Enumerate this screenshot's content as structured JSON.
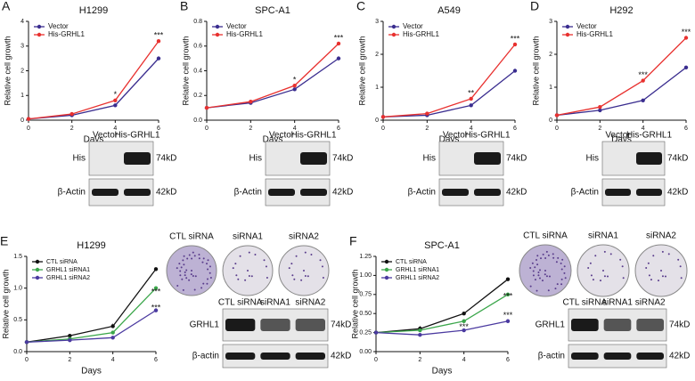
{
  "chart_data": [
    {
      "type": "line",
      "panel": "A",
      "title": "H1299",
      "xlabel": "Days",
      "ylabel": "Relative cell growth",
      "x": [
        0,
        2,
        4,
        6
      ],
      "xlim": [
        0,
        6
      ],
      "xticks": [
        0,
        2,
        4,
        6
      ],
      "ylim": [
        0,
        4
      ],
      "yticks": [
        0,
        1,
        2,
        3,
        4
      ],
      "series": [
        {
          "name": "Vector",
          "color": "#3a2d8f",
          "values": [
            0.05,
            0.2,
            0.6,
            2.5
          ]
        },
        {
          "name": "His-GRHL1",
          "color": "#e8312f",
          "values": [
            0.05,
            0.25,
            0.8,
            3.2
          ]
        }
      ],
      "annotations": [
        {
          "text": "*",
          "x": 4,
          "y": 0.8
        },
        {
          "text": "***",
          "x": 6,
          "y": 3.2
        }
      ],
      "blot": {
        "lanes": [
          "Vector",
          "His-GRHL1"
        ],
        "rows": [
          {
            "label": "His",
            "size": "74kD"
          },
          {
            "label": "β-Actin",
            "size": "42kD"
          }
        ]
      }
    },
    {
      "type": "line",
      "panel": "B",
      "title": "SPC-A1",
      "xlabel": "Days",
      "ylabel": "Relative cell growth",
      "x": [
        0,
        2,
        4,
        6
      ],
      "xlim": [
        0,
        6
      ],
      "xticks": [
        0,
        2,
        4,
        6
      ],
      "ylim": [
        0,
        0.8
      ],
      "yticks": [
        {
          "value": 0,
          "label": "0.0"
        },
        0.2,
        0.4,
        0.6,
        0.8
      ],
      "series": [
        {
          "name": "Vector",
          "color": "#3a2d8f",
          "values": [
            0.1,
            0.14,
            0.25,
            0.5
          ]
        },
        {
          "name": "His-GRHL1",
          "color": "#e8312f",
          "values": [
            0.1,
            0.15,
            0.28,
            0.62
          ]
        }
      ],
      "annotations": [
        {
          "text": "*",
          "x": 4,
          "y": 0.28
        },
        {
          "text": "***",
          "x": 6,
          "y": 0.62
        }
      ],
      "blot": {
        "lanes": [
          "Vector",
          "His-GRHL1"
        ],
        "rows": [
          {
            "label": "His",
            "size": "74kD"
          },
          {
            "label": "β-Actin",
            "size": "42kD"
          }
        ]
      }
    },
    {
      "type": "line",
      "panel": "C",
      "title": "A549",
      "xlabel": "Days",
      "ylabel": "Relative cell growth",
      "x": [
        0,
        2,
        4,
        6
      ],
      "xlim": [
        0,
        6
      ],
      "xticks": [
        0,
        2,
        4,
        6
      ],
      "ylim": [
        0,
        3
      ],
      "yticks": [
        0,
        1,
        2,
        3
      ],
      "series": [
        {
          "name": "Vector",
          "color": "#3a2d8f",
          "values": [
            0.1,
            0.15,
            0.45,
            1.5
          ]
        },
        {
          "name": "His-GRHL1",
          "color": "#e8312f",
          "values": [
            0.1,
            0.2,
            0.65,
            2.3
          ]
        }
      ],
      "annotations": [
        {
          "text": "**",
          "x": 4,
          "y": 0.65
        },
        {
          "text": "***",
          "x": 6,
          "y": 2.3
        }
      ],
      "blot": {
        "lanes": [
          "Vector",
          "His-GRHL1"
        ],
        "rows": [
          {
            "label": "His",
            "size": "74kD"
          },
          {
            "label": "β-Actin",
            "size": "42kD"
          }
        ]
      }
    },
    {
      "type": "line",
      "panel": "D",
      "title": "H292",
      "xlabel": "Days",
      "ylabel": "Relative cell growth",
      "x": [
        0,
        2,
        4,
        6
      ],
      "xlim": [
        0,
        6
      ],
      "xticks": [
        0,
        2,
        4,
        6
      ],
      "ylim": [
        0,
        3
      ],
      "yticks": [
        0,
        1,
        2,
        3
      ],
      "series": [
        {
          "name": "Vector",
          "color": "#3a2d8f",
          "values": [
            0.15,
            0.3,
            0.6,
            1.6
          ]
        },
        {
          "name": "His-GRHL1",
          "color": "#e8312f",
          "values": [
            0.15,
            0.4,
            1.2,
            2.5
          ]
        }
      ],
      "annotations": [
        {
          "text": "***",
          "x": 4,
          "y": 1.2
        },
        {
          "text": "***",
          "x": 6,
          "y": 2.5
        }
      ],
      "blot": {
        "lanes": [
          "Vector",
          "His-GRHL1"
        ],
        "rows": [
          {
            "label": "His",
            "size": "74kD"
          },
          {
            "label": "β-Actin",
            "size": "42kD"
          }
        ]
      }
    },
    {
      "type": "line",
      "panel": "E",
      "title": "H1299",
      "xlabel": "Days",
      "ylabel": "Relative cell growth",
      "x": [
        0,
        2,
        4,
        6
      ],
      "xlim": [
        0,
        6
      ],
      "xticks": [
        0,
        2,
        4,
        6
      ],
      "ylim": [
        0,
        1.5
      ],
      "yticks": [
        {
          "value": 0,
          "label": "0.0"
        },
        0.5,
        {
          "value": 1,
          "label": "1.0"
        },
        1.5
      ],
      "series": [
        {
          "name": "CTL siRNA",
          "color": "#111111",
          "values": [
            0.15,
            0.25,
            0.4,
            1.3
          ]
        },
        {
          "name": "GRHL1 siRNA1",
          "color": "#3aa64a",
          "values": [
            0.15,
            0.2,
            0.3,
            1.0
          ]
        },
        {
          "name": "GRHL1 siRNA2",
          "color": "#4b3aa0",
          "values": [
            0.15,
            0.18,
            0.22,
            0.65
          ]
        }
      ],
      "annotations": [
        {
          "text": "*",
          "x": 4,
          "y": 0.3
        },
        {
          "text": "***",
          "x": 6,
          "y": 0.85
        },
        {
          "text": "***",
          "x": 6,
          "y": 0.6
        }
      ],
      "plates": [
        "CTL siRNA",
        "siRNA1",
        "siRNA2"
      ],
      "blot": {
        "lanes": [
          "CTL siRNA",
          "siRNA1",
          "siRNA2"
        ],
        "rows": [
          {
            "label": "GRHL1",
            "size": "74kD"
          },
          {
            "label": "β-actin",
            "size": "42kD"
          }
        ]
      }
    },
    {
      "type": "line",
      "panel": "F",
      "title": "SPC-A1",
      "xlabel": "Days",
      "ylabel": "Relative cell growth",
      "x": [
        0,
        2,
        4,
        6
      ],
      "xlim": [
        0,
        6
      ],
      "xticks": [
        0,
        2,
        4,
        6
      ],
      "ylim": [
        0,
        1.25
      ],
      "yticks": [
        {
          "value": 0,
          "label": "0.00"
        },
        0.25,
        {
          "value": 0.5,
          "label": "0.50"
        },
        0.75,
        {
          "value": 1,
          "label": "1.00"
        },
        1.25
      ],
      "series": [
        {
          "name": "CTL siRNA",
          "color": "#111111",
          "values": [
            0.25,
            0.3,
            0.5,
            0.95
          ]
        },
        {
          "name": "GRHL1 siRNA1",
          "color": "#3aa64a",
          "values": [
            0.25,
            0.28,
            0.4,
            0.75
          ]
        },
        {
          "name": "GRHL1 siRNA2",
          "color": "#4b3aa0",
          "values": [
            0.25,
            0.22,
            0.28,
            0.4
          ]
        }
      ],
      "annotations": [
        {
          "text": "*",
          "x": 2,
          "y": 0.22
        },
        {
          "text": "***",
          "x": 4,
          "y": 0.25
        },
        {
          "text": "***",
          "x": 6,
          "y": 0.65
        },
        {
          "text": "***",
          "x": 6,
          "y": 0.4
        }
      ],
      "plates": [
        "CTL siRNA",
        "siRNA1",
        "siRNA2"
      ],
      "blot": {
        "lanes": [
          "CTL siRNA",
          "siRNA1",
          "siRNA2"
        ],
        "rows": [
          {
            "label": "GRHL1",
            "size": "74kD"
          },
          {
            "label": "β-actin",
            "size": "42kD"
          }
        ]
      }
    }
  ]
}
